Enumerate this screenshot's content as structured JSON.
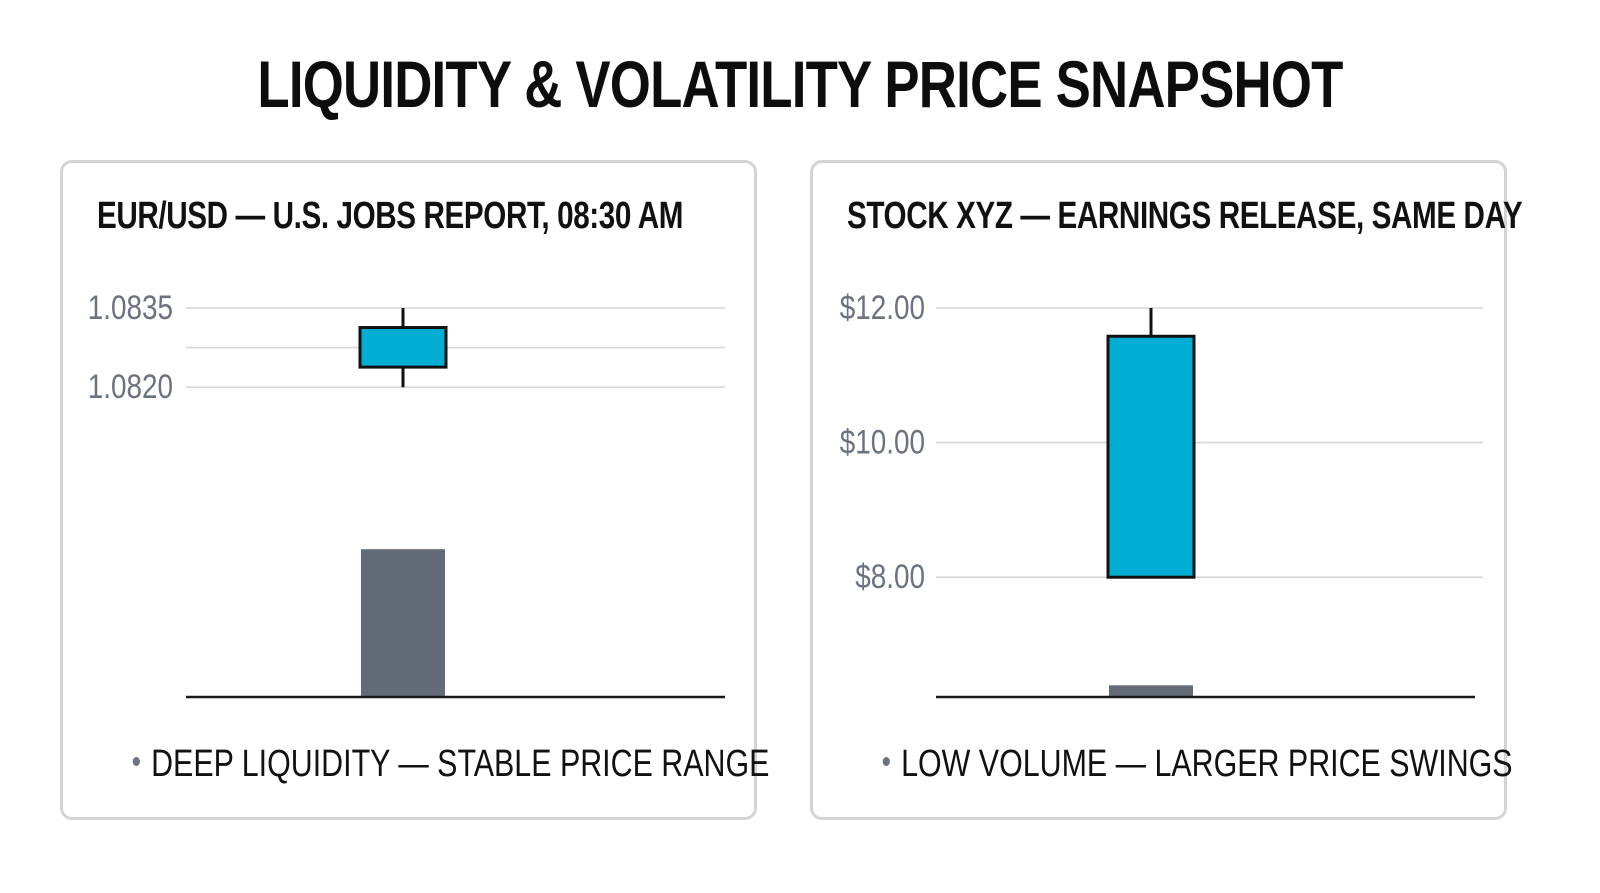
{
  "title": "LIQUIDITY & VOLATILITY PRICE SNAPSHOT",
  "colors": {
    "candle_fill": "#00AED4",
    "candle_stroke": "#111111",
    "volume_bar": "#646B78",
    "gridline": "#d6d6d6",
    "axis_line": "#1a1a1a",
    "tick_label": "#6b7280"
  },
  "chart_data": [
    {
      "type": "candlestick",
      "title": "EUR/USD — U.S. JOBS REPORT, 08:30 AM",
      "annotation": "DEEP LIQUIDITY — STABLE PRICE RANGE",
      "yticks": [
        {
          "value": 1.082,
          "label": "1.0820"
        },
        {
          "value": 1.0835,
          "label": "1.0835"
        }
      ],
      "gridlines": [
        1.082,
        1.08275,
        1.0835
      ],
      "ylim": [
        1.07613,
        1.0835
      ],
      "candles": [
        {
          "open": 1.08238,
          "close": 1.08313,
          "high": 1.0835,
          "low": 1.082
        }
      ],
      "volume": {
        "value": 0.38,
        "max": 1
      }
    },
    {
      "type": "candlestick",
      "title": "STOCK XYZ — EARNINGS RELEASE, SAME DAY",
      "annotation": "LOW VOLUME — LARGER PRICE SWINGS",
      "yticks": [
        {
          "value": 8.0,
          "label": "$8.00"
        },
        {
          "value": 10.0,
          "label": "$10.00"
        },
        {
          "value": 12.0,
          "label": "$12.00"
        }
      ],
      "gridlines": [
        8.0,
        10.0,
        12.0
      ],
      "ylim": [
        6.22,
        12.0
      ],
      "candles": [
        {
          "open": 8.0,
          "close": 11.58,
          "high": 12.0,
          "low": 8.0
        }
      ],
      "volume": {
        "value": 0.03,
        "max": 1
      }
    }
  ]
}
